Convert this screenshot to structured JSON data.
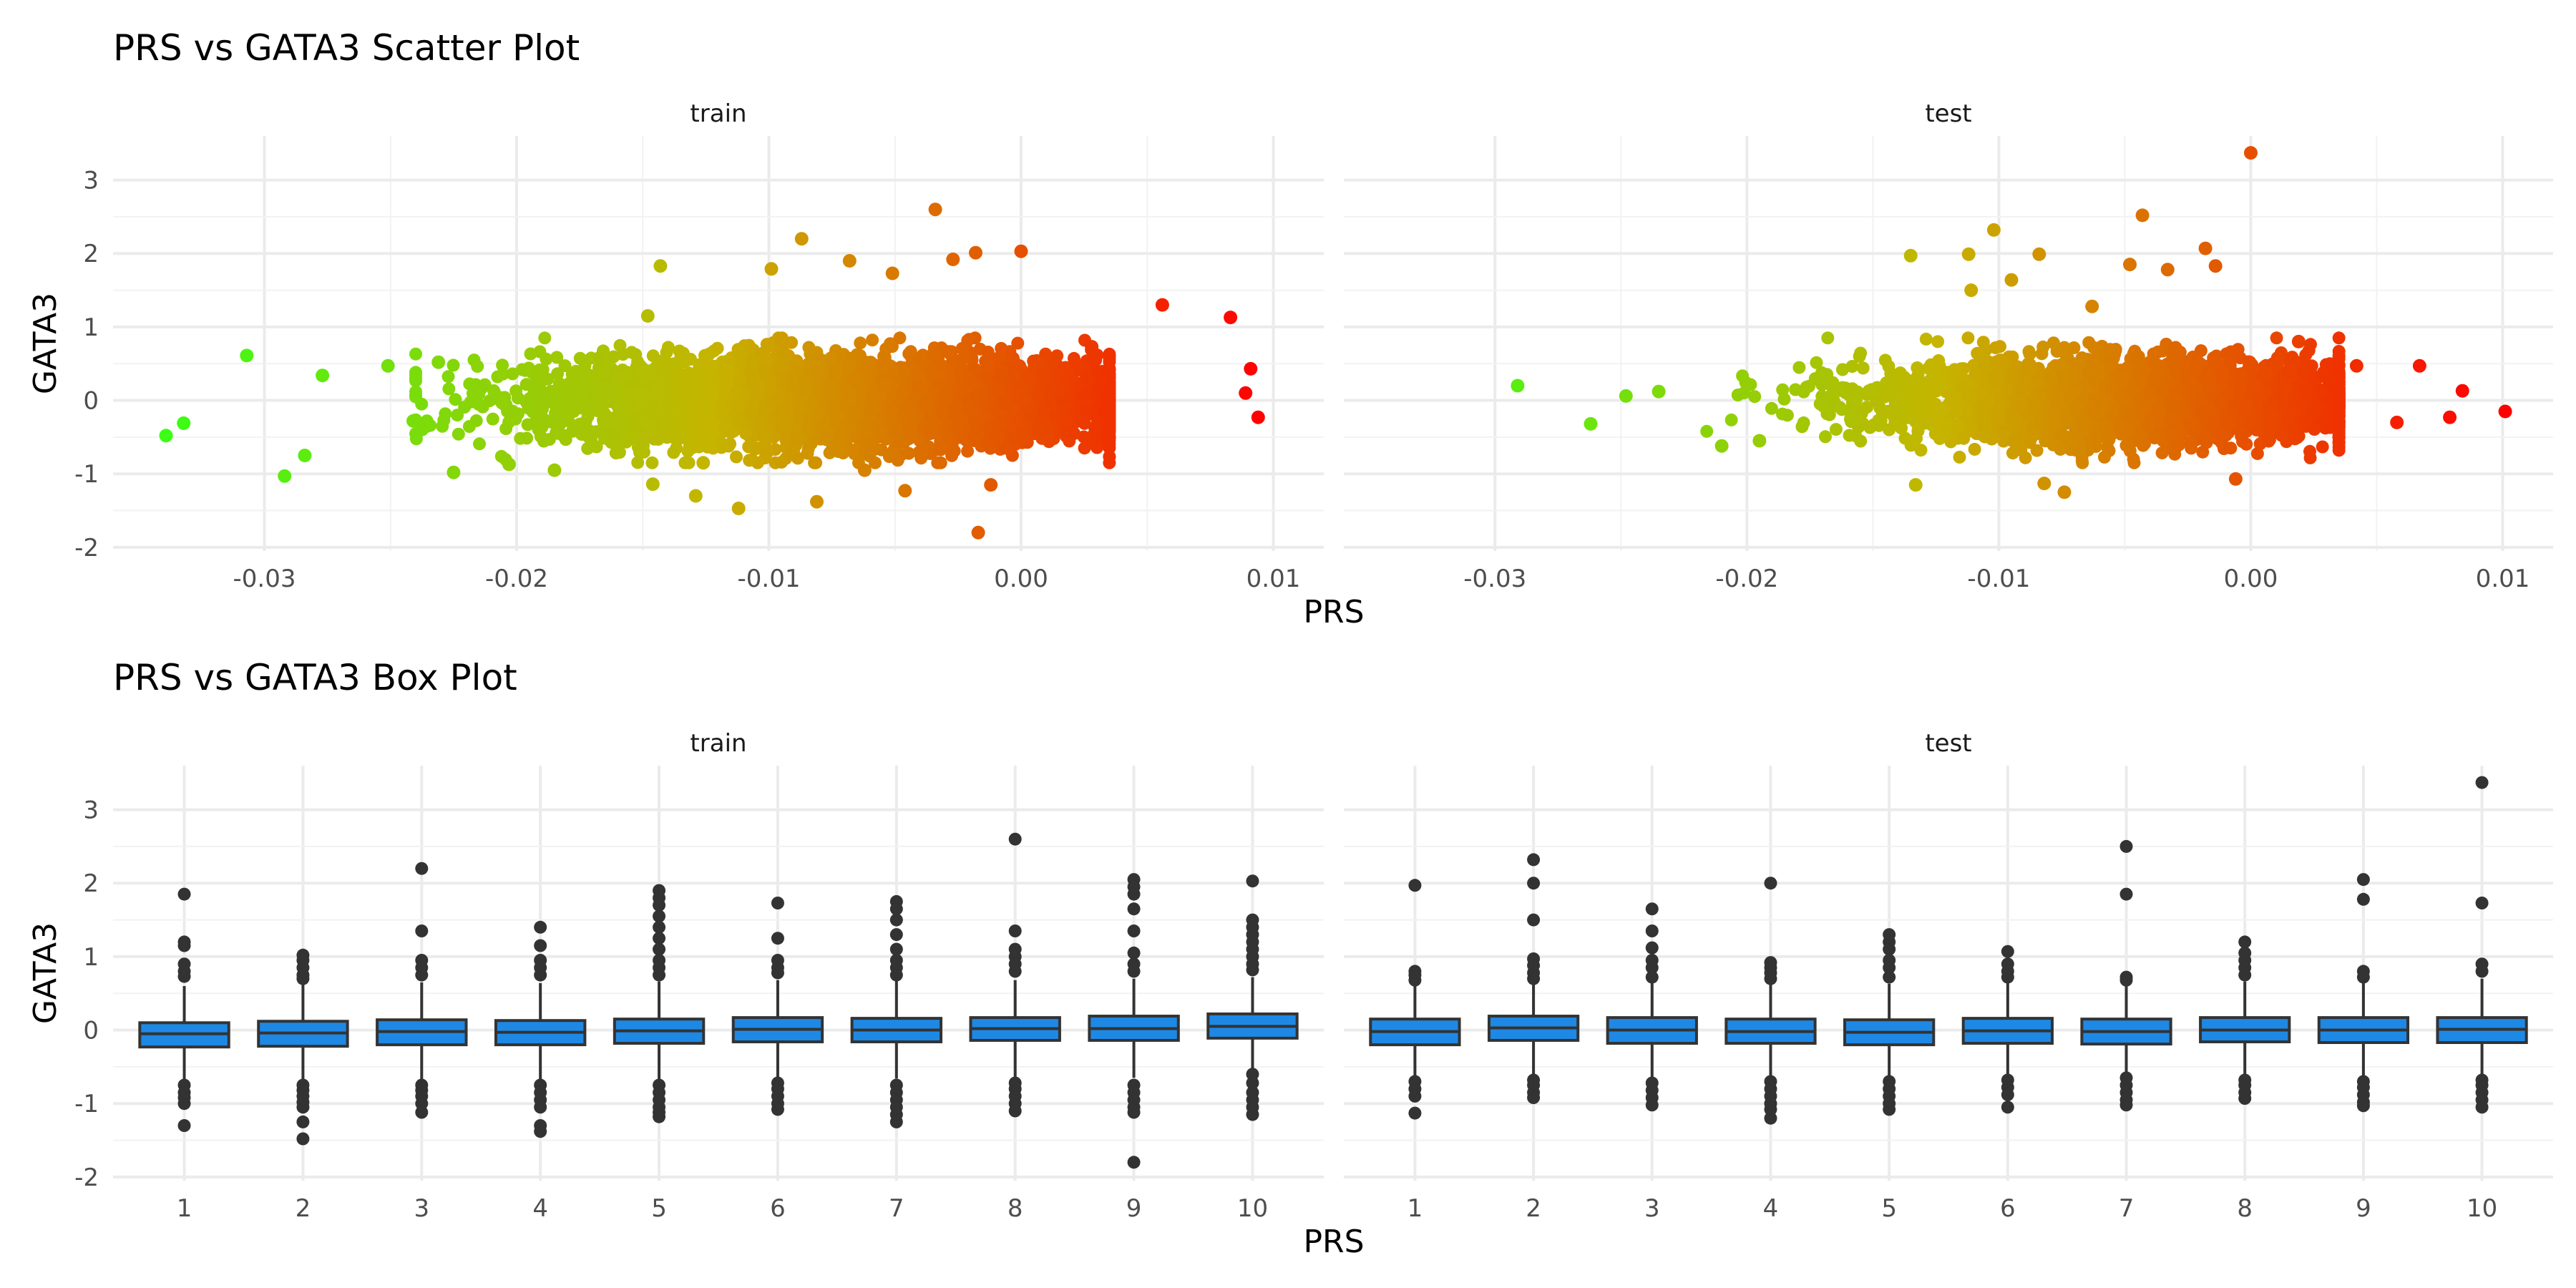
{
  "figure": {
    "scatter_title": "PRS vs GATA3 Scatter Plot",
    "box_title": "PRS vs GATA3 Box Plot",
    "xlabel": "PRS",
    "ylabel": "GATA3",
    "panels": [
      "train",
      "test"
    ]
  },
  "chart_data": [
    {
      "type": "scatter",
      "title": "PRS vs GATA3 Scatter Plot",
      "xlabel": "PRS",
      "ylabel": "GATA3",
      "facets": [
        "train",
        "test"
      ],
      "xlim": [
        -0.036,
        0.012
      ],
      "ylim": [
        -2.05,
        3.6
      ],
      "x_ticks": [
        -0.03,
        -0.02,
        -0.01,
        0.0,
        0.01
      ],
      "x_tick_labels": [
        "-0.03",
        "-0.02",
        "-0.01",
        "0.00",
        "0.01"
      ],
      "y_ticks": [
        -2,
        -1,
        0,
        1,
        2,
        3
      ],
      "y_tick_labels": [
        "-2",
        "-1",
        "0",
        "1",
        "2",
        "3"
      ],
      "color_gradient": {
        "low": "#39ff14",
        "mid": "#c6b400",
        "high": "#ff0000"
      },
      "grid": true,
      "legend": "none",
      "series": [
        {
          "facet": "train",
          "summary": {
            "x_center": -0.007,
            "x_sd": 0.006,
            "y_sd": 0.3,
            "n_approx": 4000
          },
          "points": [
            [
              -0.0339,
              -0.48
            ],
            [
              -0.0332,
              -0.31
            ],
            [
              -0.0307,
              0.61
            ],
            [
              -0.0292,
              -1.03
            ],
            [
              -0.0284,
              -0.75
            ],
            [
              -0.0277,
              0.34
            ],
            [
              -0.0251,
              0.47
            ],
            [
              -0.0241,
              -0.28
            ],
            [
              -0.0225,
              -0.98
            ],
            [
              -0.0231,
              0.52
            ],
            [
              -0.0203,
              -0.87
            ],
            [
              -0.0185,
              -0.95
            ],
            [
              -0.0143,
              1.83
            ],
            [
              -0.0148,
              1.15
            ],
            [
              -0.0146,
              -1.14
            ],
            [
              -0.0129,
              -1.3
            ],
            [
              -0.0126,
              -0.85
            ],
            [
              -0.0112,
              -1.47
            ],
            [
              -0.0099,
              1.79
            ],
            [
              -0.0087,
              2.2
            ],
            [
              -0.0081,
              -1.38
            ],
            [
              -0.0068,
              1.9
            ],
            [
              -0.0062,
              -0.95
            ],
            [
              -0.0051,
              1.73
            ],
            [
              -0.0046,
              -1.23
            ],
            [
              -0.0034,
              2.6
            ],
            [
              -0.0027,
              1.92
            ],
            [
              -0.0018,
              2.01
            ],
            [
              -0.0017,
              -1.8
            ],
            [
              -0.0012,
              -1.15
            ],
            [
              0.0,
              2.03
            ],
            [
              0.0028,
              0.73
            ],
            [
              0.0056,
              1.3
            ],
            [
              0.0083,
              1.13
            ],
            [
              0.0091,
              0.43
            ],
            [
              0.0089,
              0.1
            ],
            [
              0.0094,
              -0.23
            ]
          ]
        },
        {
          "facet": "test",
          "summary": {
            "x_center": -0.005,
            "x_sd": 0.005,
            "y_sd": 0.28,
            "n_approx": 3000
          },
          "points": [
            [
              -0.0291,
              0.2
            ],
            [
              -0.0262,
              -0.32
            ],
            [
              -0.0248,
              0.06
            ],
            [
              -0.0235,
              0.12
            ],
            [
              -0.021,
              -0.62
            ],
            [
              -0.0195,
              -0.55
            ],
            [
              -0.0135,
              1.97
            ],
            [
              -0.0133,
              -1.15
            ],
            [
              -0.0111,
              1.5
            ],
            [
              -0.0112,
              1.99
            ],
            [
              -0.0102,
              2.32
            ],
            [
              -0.0095,
              1.64
            ],
            [
              -0.0084,
              1.99
            ],
            [
              -0.0082,
              -1.13
            ],
            [
              -0.0074,
              -1.25
            ],
            [
              -0.0063,
              1.28
            ],
            [
              -0.0048,
              1.85
            ],
            [
              -0.0043,
              2.52
            ],
            [
              -0.0033,
              1.78
            ],
            [
              -0.0018,
              2.07
            ],
            [
              -0.0014,
              1.83
            ],
            [
              0.0,
              3.37
            ],
            [
              -0.0006,
              -1.07
            ],
            [
              0.0019,
              0.8
            ],
            [
              0.0042,
              0.47
            ],
            [
              0.0058,
              -0.3
            ],
            [
              0.0067,
              0.47
            ],
            [
              0.0079,
              -0.23
            ],
            [
              0.0084,
              0.13
            ],
            [
              0.0101,
              -0.15
            ]
          ]
        }
      ]
    },
    {
      "type": "box",
      "title": "PRS vs GATA3 Box Plot",
      "xlabel": "PRS",
      "ylabel": "GATA3",
      "facets": [
        "train",
        "test"
      ],
      "categories": [
        "1",
        "2",
        "3",
        "4",
        "5",
        "6",
        "7",
        "8",
        "9",
        "10"
      ],
      "ylim": [
        -2.05,
        3.6
      ],
      "y_ticks": [
        -2,
        -1,
        0,
        1,
        2,
        3
      ],
      "y_tick_labels": [
        "-2",
        "-1",
        "0",
        "1",
        "2",
        "3"
      ],
      "box_fill": "#1e88e5",
      "outline": "#333333",
      "grid": true,
      "legend": "none",
      "series": [
        {
          "facet": "train",
          "boxes": [
            {
              "q1": -0.23,
              "median": -0.05,
              "q3": 0.1,
              "whisker_low": -0.72,
              "whisker_high": 0.6,
              "outliers": [
                1.85,
                1.2,
                1.15,
                0.9,
                0.8,
                0.73,
                -0.75,
                -0.85,
                -0.92,
                -1.0,
                -1.3
              ]
            },
            {
              "q1": -0.22,
              "median": -0.04,
              "q3": 0.12,
              "whisker_low": -0.72,
              "whisker_high": 0.62,
              "outliers": [
                1.02,
                0.95,
                0.85,
                0.75,
                0.7,
                -0.75,
                -0.82,
                -0.9,
                -0.98,
                -1.05,
                -1.25,
                -1.48
              ]
            },
            {
              "q1": -0.2,
              "median": -0.02,
              "q3": 0.14,
              "whisker_low": -0.7,
              "whisker_high": 0.65,
              "outliers": [
                2.2,
                1.35,
                0.95,
                0.85,
                0.75,
                -0.75,
                -0.82,
                -0.9,
                -1.0,
                -1.12
              ]
            },
            {
              "q1": -0.2,
              "median": -0.03,
              "q3": 0.13,
              "whisker_low": -0.7,
              "whisker_high": 0.64,
              "outliers": [
                1.4,
                1.15,
                0.95,
                0.85,
                0.75,
                -0.75,
                -0.85,
                -0.95,
                -1.05,
                -1.3,
                -1.38
              ]
            },
            {
              "q1": -0.18,
              "median": -0.01,
              "q3": 0.15,
              "whisker_low": -0.68,
              "whisker_high": 0.66,
              "outliers": [
                1.9,
                1.8,
                1.7,
                1.55,
                1.4,
                1.25,
                1.1,
                0.95,
                0.85,
                0.75,
                -0.75,
                -0.85,
                -0.95,
                -1.05,
                -1.12,
                -1.18
              ]
            },
            {
              "q1": -0.16,
              "median": 0.01,
              "q3": 0.17,
              "whisker_low": -0.66,
              "whisker_high": 0.68,
              "outliers": [
                1.73,
                1.25,
                0.95,
                0.85,
                0.78,
                -0.72,
                -0.8,
                -0.9,
                -1.0,
                -1.08
              ]
            },
            {
              "q1": -0.16,
              "median": 0.0,
              "q3": 0.16,
              "whisker_low": -0.66,
              "whisker_high": 0.67,
              "outliers": [
                1.75,
                1.65,
                1.5,
                1.3,
                1.1,
                0.95,
                0.85,
                0.75,
                -0.75,
                -0.85,
                -0.95,
                -1.05,
                -1.15,
                -1.25
              ]
            },
            {
              "q1": -0.14,
              "median": 0.02,
              "q3": 0.17,
              "whisker_low": -0.64,
              "whisker_high": 0.68,
              "outliers": [
                2.6,
                1.35,
                1.1,
                1.0,
                0.9,
                0.8,
                -0.72,
                -0.8,
                -0.9,
                -1.0,
                -1.1
              ]
            },
            {
              "q1": -0.14,
              "median": 0.02,
              "q3": 0.19,
              "whisker_low": -0.65,
              "whisker_high": 0.7,
              "outliers": [
                2.05,
                1.95,
                1.85,
                1.65,
                1.35,
                1.05,
                0.9,
                0.8,
                -0.75,
                -0.85,
                -0.95,
                -1.05,
                -1.12,
                -1.8
              ]
            },
            {
              "q1": -0.11,
              "median": 0.05,
              "q3": 0.22,
              "whisker_low": -0.6,
              "whisker_high": 0.72,
              "outliers": [
                2.03,
                1.5,
                1.4,
                1.3,
                1.2,
                1.1,
                1.0,
                0.9,
                0.82,
                -0.6,
                -0.72,
                -0.85,
                -0.95,
                -1.05,
                -1.15
              ]
            }
          ]
        },
        {
          "facet": "test",
          "boxes": [
            {
              "q1": -0.2,
              "median": -0.02,
              "q3": 0.15,
              "whisker_low": -0.65,
              "whisker_high": 0.6,
              "outliers": [
                1.97,
                0.8,
                0.75,
                0.68,
                -0.7,
                -0.8,
                -0.9,
                -1.13
              ]
            },
            {
              "q1": -0.14,
              "median": 0.03,
              "q3": 0.19,
              "whisker_low": -0.62,
              "whisker_high": 0.65,
              "outliers": [
                2.32,
                2.0,
                1.5,
                0.97,
                0.88,
                0.78,
                0.7,
                -0.68,
                -0.75,
                -0.85,
                -0.92
              ]
            },
            {
              "q1": -0.18,
              "median": 0.0,
              "q3": 0.17,
              "whisker_low": -0.64,
              "whisker_high": 0.66,
              "outliers": [
                1.65,
                1.35,
                1.12,
                0.95,
                0.85,
                0.72,
                -0.72,
                -0.82,
                -0.92,
                -1.02
              ]
            },
            {
              "q1": -0.18,
              "median": -0.02,
              "q3": 0.15,
              "whisker_low": -0.64,
              "whisker_high": 0.64,
              "outliers": [
                2.0,
                0.92,
                0.85,
                0.78,
                0.7,
                -0.7,
                -0.8,
                -0.9,
                -1.0,
                -1.08,
                -1.2
              ]
            },
            {
              "q1": -0.2,
              "median": -0.03,
              "q3": 0.14,
              "whisker_low": -0.64,
              "whisker_high": 0.63,
              "outliers": [
                1.3,
                1.2,
                1.1,
                0.95,
                0.85,
                0.72,
                -0.7,
                -0.8,
                -0.9,
                -1.0,
                -1.08
              ]
            },
            {
              "q1": -0.18,
              "median": -0.01,
              "q3": 0.16,
              "whisker_low": -0.63,
              "whisker_high": 0.65,
              "outliers": [
                1.07,
                0.9,
                0.8,
                0.72,
                -0.68,
                -0.78,
                -0.88,
                -1.05
              ]
            },
            {
              "q1": -0.19,
              "median": -0.02,
              "q3": 0.15,
              "whisker_low": -0.64,
              "whisker_high": 0.62,
              "outliers": [
                2.5,
                1.85,
                0.72,
                0.68,
                -0.65,
                -0.75,
                -0.85,
                -0.95,
                -1.02
              ]
            },
            {
              "q1": -0.16,
              "median": 0.0,
              "q3": 0.17,
              "whisker_low": -0.62,
              "whisker_high": 0.66,
              "outliers": [
                1.2,
                1.05,
                0.95,
                0.85,
                0.75,
                -0.68,
                -0.75,
                -0.85,
                -0.93
              ]
            },
            {
              "q1": -0.17,
              "median": 0.0,
              "q3": 0.17,
              "whisker_low": -0.63,
              "whisker_high": 0.64,
              "outliers": [
                2.05,
                1.78,
                0.8,
                0.72,
                -0.7,
                -0.78,
                -0.88,
                -0.98,
                -1.03
              ]
            },
            {
              "q1": -0.17,
              "median": 0.01,
              "q3": 0.17,
              "whisker_low": -0.64,
              "whisker_high": 0.7,
              "outliers": [
                3.37,
                1.73,
                0.9,
                0.8,
                -0.68,
                -0.75,
                -0.85,
                -0.95,
                -1.05
              ]
            }
          ]
        }
      ]
    }
  ]
}
